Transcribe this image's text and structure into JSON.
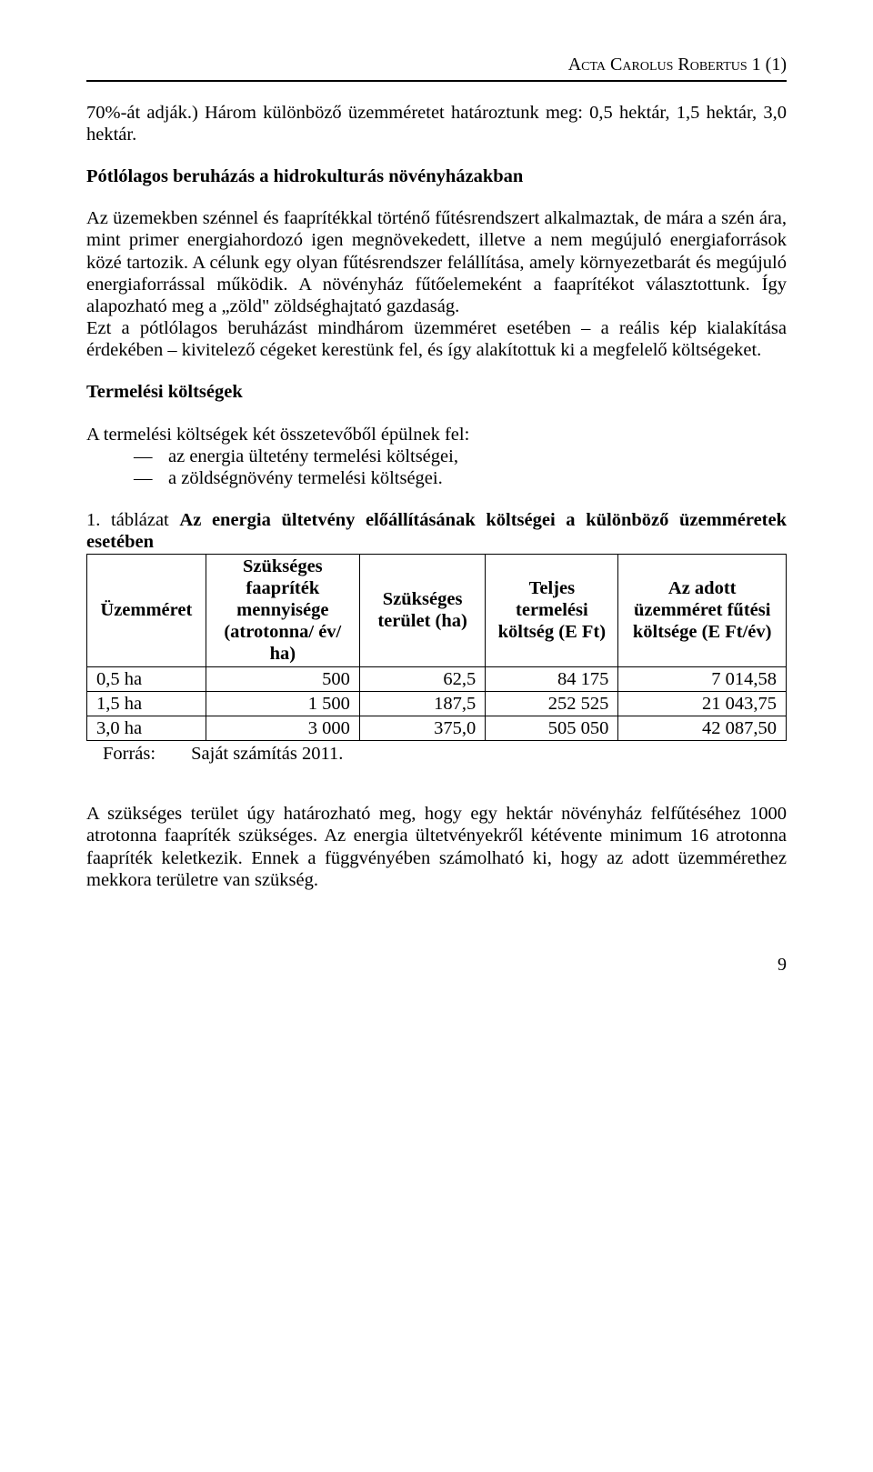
{
  "header": {
    "journal": "Acta Carolus Robertus 1 (1)"
  },
  "body": {
    "p1": "70%-át adják.) Három különböző üzemméretet határoztunk meg: 0,5 hektár, 1,5 hektár, 3,0 hektár.",
    "h1": "Pótlólagos beruházás a hidrokulturás növényházakban",
    "p2": "Az üzemekben szénnel és faaprítékkal történő fűtésrendszert alkalmaztak, de mára a szén ára, mint primer energiahordozó igen megnövekedett, illetve a nem megújuló energiaforrások közé tartozik. A célunk egy olyan fűtésrendszer felállítása, amely környezetbarát és megújuló energiaforrással működik. A növényház fűtőelemeként a faaprítékot választottunk. Így alapozható meg a „zöld\" zöldséghajtató gazdaság.",
    "p3": "Ezt a pótlólagos beruházást mindhárom üzemméret esetében – a reális kép kialakítása érdekében – kivitelező cégeket kerestünk fel, és így alakítottuk ki a megfelelő költségeket.",
    "h2": "Termelési költségek",
    "list_intro": "A termelési költségek két összetevőből épülnek fel:",
    "list": [
      "az energia ültetény termelési költségei,",
      "a zöldségnövény termelési költségei."
    ],
    "table_caption_prefix": "1. táblázat ",
    "table_caption_bold": "Az energia ültetvény előállításának költségei a különböző üzemméretek esetében",
    "table": {
      "columns": [
        "Üzemméret",
        "Szükséges faapríték mennyisége (atrotonna/ év/ ha)",
        "Szükséges terület (ha)",
        "Teljes termelési költség (E Ft)",
        "Az adott üzemméret fűtési költsége (E Ft/év)"
      ],
      "rows": [
        [
          "0,5 ha",
          "500",
          "62,5",
          "84 175",
          "7 014,58"
        ],
        [
          "1,5 ha",
          "1 500",
          "187,5",
          "252 525",
          "21 043,75"
        ],
        [
          "3,0 ha",
          "3 000",
          "375,0",
          "505 050",
          "42 087,50"
        ]
      ],
      "col_widths": [
        "17%",
        "22%",
        "18%",
        "19%",
        "24%"
      ],
      "border_color": "#000000",
      "header_bold": true
    },
    "source_label": "Forrás:",
    "source_text": "Saját számítás 2011.",
    "p4": "A szükséges terület úgy határozható meg, hogy egy hektár növényház felfűtéséhez 1000 atrotonna faapríték szükséges. Az energia ültetvényekről kétévente minimum 16 atrotonna faapríték keletkezik. Ennek a függvényében számolható ki, hogy az adott üzemmérethez mekkora területre van szükség."
  },
  "footer": {
    "page_number": "9"
  },
  "style": {
    "font_family": "Times New Roman",
    "body_font_size_pt": 12,
    "text_color": "#000000",
    "background_color": "#ffffff",
    "rule_color": "#000000"
  }
}
